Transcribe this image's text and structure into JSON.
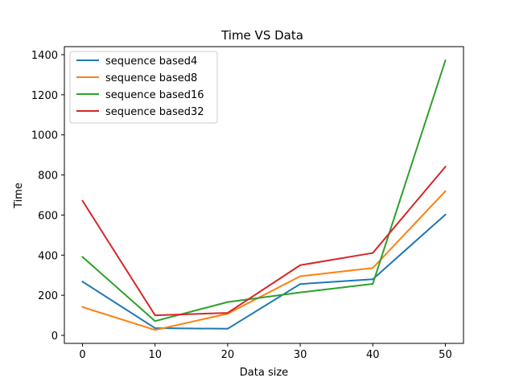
{
  "chart_data": {
    "type": "line",
    "title": "Time VS Data",
    "xlabel": "Data size",
    "ylabel": "Time",
    "x": [
      0,
      10,
      20,
      30,
      40,
      50
    ],
    "xlim": [
      -2.5,
      52.5
    ],
    "ylim": [
      -40,
      1440
    ],
    "xticks": [
      0,
      10,
      20,
      30,
      40,
      50
    ],
    "yticks": [
      0,
      200,
      400,
      600,
      800,
      1000,
      1200,
      1400
    ],
    "grid": false,
    "legend_position": "top-left",
    "series": [
      {
        "name": "sequence based4",
        "color": "#1f77b4",
        "values": [
          268,
          36,
          33,
          256,
          280,
          602
        ]
      },
      {
        "name": "sequence based8",
        "color": "#ff7f0e",
        "values": [
          141,
          27,
          108,
          295,
          336,
          719
        ]
      },
      {
        "name": "sequence based16",
        "color": "#2ca02c",
        "values": [
          391,
          71,
          166,
          214,
          257,
          1371
        ]
      },
      {
        "name": "sequence based32",
        "color": "#d62728",
        "values": [
          671,
          100,
          112,
          350,
          411,
          841
        ]
      }
    ]
  }
}
